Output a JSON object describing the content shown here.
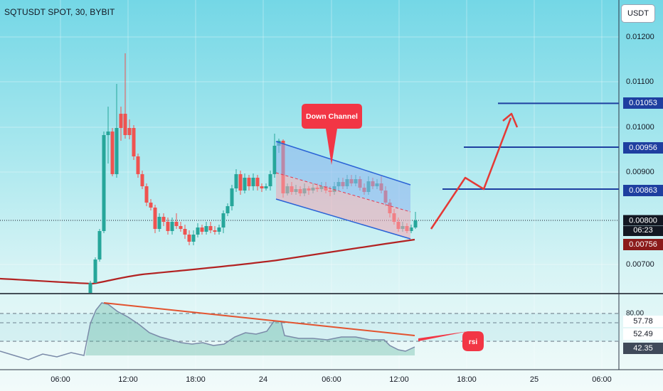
{
  "header": {
    "symbol_title": "SQTUSDT SPOT, 30, BYBIT",
    "currency_button": "USDT"
  },
  "price_axis": {
    "ticks": [
      {
        "label": "0.01200",
        "value": 0.012
      },
      {
        "label": "0.01100",
        "value": 0.011
      },
      {
        "label": "0.01000",
        "value": 0.01
      },
      {
        "label": "0.00900",
        "value": 0.009
      },
      {
        "label": "0.00700",
        "value": 0.007
      }
    ],
    "current_price": "0.00800",
    "countdown": "06:23",
    "ma_value": "0.00756",
    "levels": [
      {
        "label": "0.01053",
        "value": 0.01053
      },
      {
        "label": "0.00956",
        "value": 0.00956
      },
      {
        "label": "0.00863",
        "value": 0.00863
      }
    ]
  },
  "rsi_axis": {
    "ticks": [
      "80.00",
      "57.78",
      "52.49",
      "42.35"
    ]
  },
  "time_axis": {
    "labels": [
      "06:00",
      "12:00",
      "18:00",
      "24",
      "06:00",
      "12:00",
      "18:00",
      "25",
      "06:00"
    ]
  },
  "annotations": {
    "channel_label": "Down Channel",
    "rsi_label": "rsi"
  },
  "colors": {
    "up": "#26a69a",
    "down": "#ef5350",
    "level_line": "#1e3fa0",
    "ma_line": "#b22222",
    "arrow": "#e53935",
    "callout": "#f23645"
  },
  "chart_data": [
    {
      "type": "candlestick",
      "title": "SQTUSDT SPOT, 30, BYBIT",
      "ylabel": "USDT",
      "ylim": [
        0.0066,
        0.0124
      ],
      "x": [
        "06:00",
        "12:00",
        "18:00",
        "24",
        "06:00",
        "12:00",
        "18:00",
        "25",
        "06:00"
      ],
      "series": [
        {
          "name": "price",
          "last": 0.008
        },
        {
          "name": "MA",
          "last": 0.00756
        }
      ],
      "levels": [
        0.01053,
        0.00956,
        0.00863
      ]
    },
    {
      "type": "line",
      "title": "rsi",
      "ticks": [
        80.0,
        57.78,
        52.49,
        42.35
      ]
    }
  ]
}
